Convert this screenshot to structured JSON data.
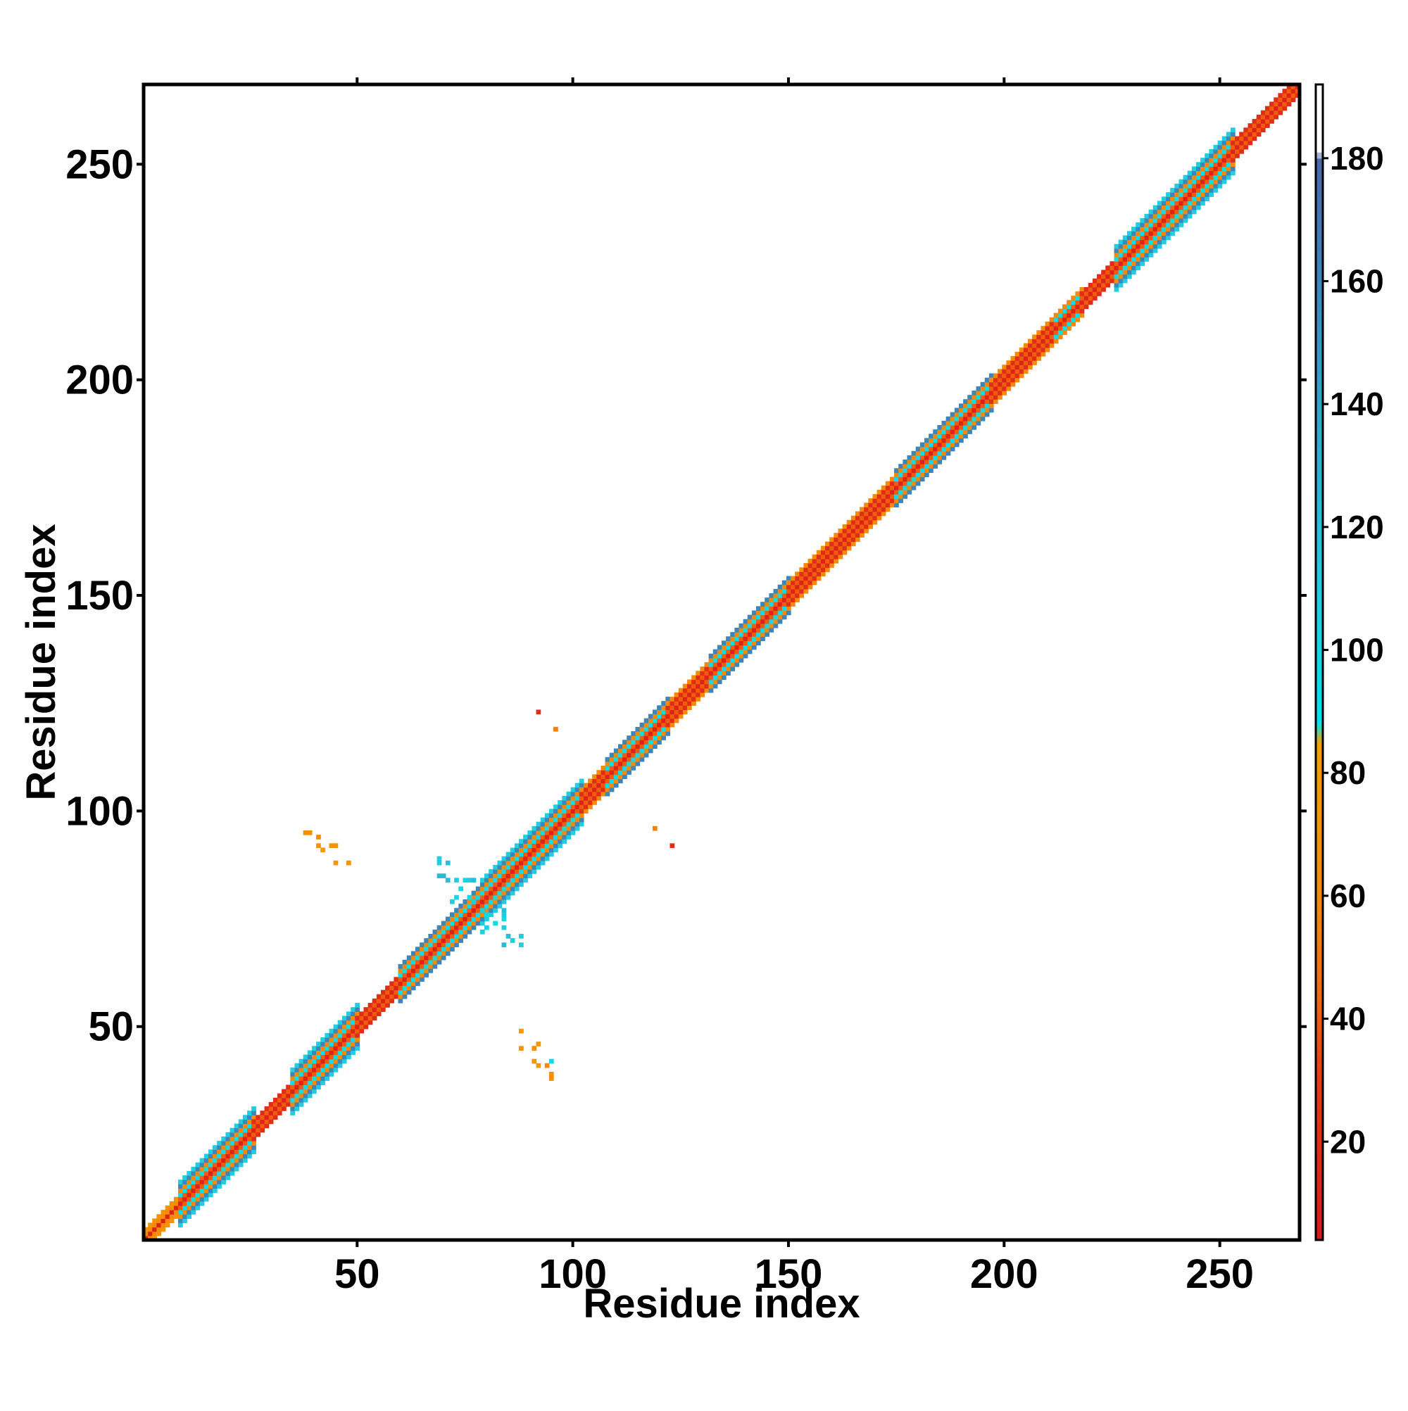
{
  "chart_data": {
    "type": "heatmap",
    "title": "",
    "xlabel": "Residue index",
    "ylabel": "Residue index",
    "xlim": [
      1,
      268
    ],
    "ylim": [
      1,
      268
    ],
    "xticks": [
      50,
      100,
      150,
      200,
      250
    ],
    "yticks": [
      50,
      100,
      150,
      200,
      250
    ],
    "grid": false,
    "colorbar": {
      "range": [
        4,
        192
      ],
      "ticks": [
        20,
        40,
        60,
        80,
        100,
        120,
        140,
        160,
        180
      ],
      "stops": [
        {
          "value": 4,
          "color": "#d7191c"
        },
        {
          "value": 30,
          "color": "#e83a10"
        },
        {
          "value": 45,
          "color": "#f26b0f"
        },
        {
          "value": 60,
          "color": "#f58a0a"
        },
        {
          "value": 85,
          "color": "#f5a000"
        },
        {
          "value": 88,
          "color": "#00e5ee"
        },
        {
          "value": 110,
          "color": "#22cde0"
        },
        {
          "value": 140,
          "color": "#2fa7c9"
        },
        {
          "value": 165,
          "color": "#3e7fb8"
        },
        {
          "value": 180,
          "color": "#4a69a8"
        },
        {
          "value": 181,
          "color": "#ffffff"
        },
        {
          "value": 192,
          "color": "#ffffff"
        }
      ]
    },
    "diagonal_segments": [
      {
        "from": 1,
        "to": 9,
        "half_width": 2,
        "profile": "orange"
      },
      {
        "from": 9,
        "to": 26,
        "half_width": 5,
        "profile": "helix"
      },
      {
        "from": 26,
        "to": 35,
        "half_width": 2,
        "profile": "loop"
      },
      {
        "from": 35,
        "to": 50,
        "half_width": 5,
        "profile": "helix"
      },
      {
        "from": 50,
        "to": 60,
        "half_width": 2,
        "profile": "loop"
      },
      {
        "from": 60,
        "to": 79,
        "half_width": 4,
        "profile": "helix"
      },
      {
        "from": 79,
        "to": 102,
        "half_width": 5,
        "profile": "helix"
      },
      {
        "from": 102,
        "to": 108,
        "half_width": 3,
        "profile": "loop"
      },
      {
        "from": 108,
        "to": 122,
        "half_width": 4,
        "profile": "helix"
      },
      {
        "from": 122,
        "to": 132,
        "half_width": 3,
        "profile": "loop"
      },
      {
        "from": 132,
        "to": 150,
        "half_width": 4,
        "profile": "helix"
      },
      {
        "from": 150,
        "to": 175,
        "half_width": 3,
        "profile": "loop"
      },
      {
        "from": 175,
        "to": 197,
        "half_width": 4,
        "profile": "helix"
      },
      {
        "from": 197,
        "to": 212,
        "half_width": 3,
        "profile": "loop"
      },
      {
        "from": 212,
        "to": 218,
        "half_width": 3,
        "profile": "helix"
      },
      {
        "from": 218,
        "to": 226,
        "half_width": 2,
        "profile": "loop"
      },
      {
        "from": 226,
        "to": 253,
        "half_width": 5,
        "profile": "helix"
      },
      {
        "from": 253,
        "to": 268,
        "half_width": 2,
        "profile": "loop"
      }
    ],
    "off_diagonal_contacts": [
      {
        "x": 38,
        "y": 95,
        "value": 65
      },
      {
        "x": 39,
        "y": 95,
        "value": 65
      },
      {
        "x": 41,
        "y": 94,
        "value": 60
      },
      {
        "x": 41,
        "y": 92,
        "value": 70
      },
      {
        "x": 42,
        "y": 91,
        "value": 75
      },
      {
        "x": 44,
        "y": 92,
        "value": 70
      },
      {
        "x": 45,
        "y": 92,
        "value": 70
      },
      {
        "x": 45,
        "y": 88,
        "value": 75
      },
      {
        "x": 48,
        "y": 88,
        "value": 70
      },
      {
        "x": 88,
        "y": 49,
        "value": 75
      },
      {
        "x": 88,
        "y": 45,
        "value": 70
      },
      {
        "x": 91,
        "y": 45,
        "value": 65
      },
      {
        "x": 92,
        "y": 46,
        "value": 75
      },
      {
        "x": 91,
        "y": 42,
        "value": 70
      },
      {
        "x": 92,
        "y": 41,
        "value": 75
      },
      {
        "x": 94,
        "y": 41,
        "value": 60
      },
      {
        "x": 95,
        "y": 42,
        "value": 100
      },
      {
        "x": 95,
        "y": 38,
        "value": 65
      },
      {
        "x": 95,
        "y": 39,
        "value": 65
      },
      {
        "x": 69,
        "y": 89,
        "value": 110
      },
      {
        "x": 69,
        "y": 88,
        "value": 110
      },
      {
        "x": 71,
        "y": 88,
        "value": 120
      },
      {
        "x": 69,
        "y": 85,
        "value": 125
      },
      {
        "x": 70,
        "y": 85,
        "value": 125
      },
      {
        "x": 71,
        "y": 84,
        "value": 120
      },
      {
        "x": 73,
        "y": 84,
        "value": 110
      },
      {
        "x": 75,
        "y": 84,
        "value": 100
      },
      {
        "x": 76,
        "y": 84,
        "value": 110
      },
      {
        "x": 77,
        "y": 84,
        "value": 120
      },
      {
        "x": 74,
        "y": 82,
        "value": 100
      },
      {
        "x": 73,
        "y": 80,
        "value": 100
      },
      {
        "x": 72,
        "y": 79,
        "value": 110
      },
      {
        "x": 76,
        "y": 80,
        "value": 100
      },
      {
        "x": 77,
        "y": 79,
        "value": 110
      },
      {
        "x": 84,
        "y": 69,
        "value": 125
      },
      {
        "x": 85,
        "y": 71,
        "value": 120
      },
      {
        "x": 86,
        "y": 70,
        "value": 110
      },
      {
        "x": 88,
        "y": 69,
        "value": 110
      },
      {
        "x": 88,
        "y": 71,
        "value": 110
      },
      {
        "x": 84,
        "y": 73,
        "value": 110
      },
      {
        "x": 84,
        "y": 75,
        "value": 100
      },
      {
        "x": 84,
        "y": 76,
        "value": 110
      },
      {
        "x": 84,
        "y": 77,
        "value": 120
      },
      {
        "x": 82,
        "y": 74,
        "value": 100
      },
      {
        "x": 80,
        "y": 73,
        "value": 100
      },
      {
        "x": 79,
        "y": 72,
        "value": 110
      },
      {
        "x": 80,
        "y": 76,
        "value": 100
      },
      {
        "x": 79,
        "y": 77,
        "value": 110
      },
      {
        "x": 92,
        "y": 123,
        "value": 20
      },
      {
        "x": 96,
        "y": 119,
        "value": 55
      },
      {
        "x": 119,
        "y": 96,
        "value": 55
      },
      {
        "x": 123,
        "y": 92,
        "value": 20
      }
    ]
  }
}
